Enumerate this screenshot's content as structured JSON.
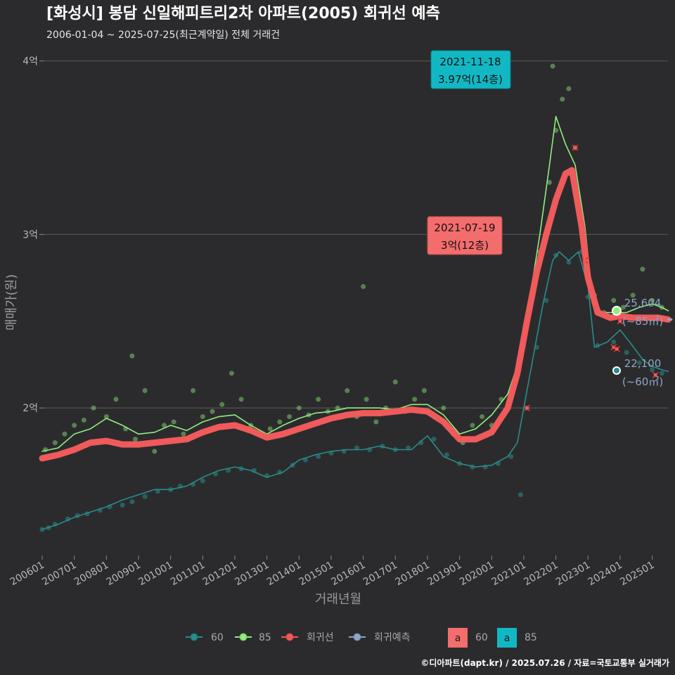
{
  "chart_data": {
    "type": "scatter",
    "title": "[화성시] 봉담 신일해피트리2차 아파트(2005) 회귀선 예측",
    "subtitle": "2006-01-04 ~ 2025-07-25(최근계약일) 전체 거래건",
    "xlabel": "거래년월",
    "ylabel": "매매가(원)",
    "x_range": [
      2006.0,
      2025.6
    ],
    "ylim": [
      1.15,
      4.1
    ],
    "y_unit": "억",
    "y_ticks": [
      {
        "value": 2,
        "label": "2억"
      },
      {
        "value": 3,
        "label": "3억"
      },
      {
        "value": 4,
        "label": "4억"
      }
    ],
    "x_ticks": [
      "200601",
      "200701",
      "200801",
      "200901",
      "201001",
      "201101",
      "201201",
      "201301",
      "201401",
      "201501",
      "201601",
      "201701",
      "201801",
      "201901",
      "202001",
      "202101",
      "202201",
      "202301",
      "202401",
      "202501"
    ],
    "grid": true,
    "legend_position": "bottom",
    "colors": {
      "s60": "#2a8c8c",
      "s85": "#90ee7e",
      "regression": "#f05a5a",
      "prediction": "#8ea6c8",
      "ann60": "#f46d6d",
      "ann85": "#11b8c4",
      "grid": "#555555",
      "bg": "#2b2b2d"
    },
    "series": [
      {
        "name": "60",
        "type": "line",
        "points": [
          [
            2006.0,
            1.3
          ],
          [
            2006.5,
            1.33
          ],
          [
            2007.0,
            1.37
          ],
          [
            2007.5,
            1.4
          ],
          [
            2008.0,
            1.43
          ],
          [
            2008.5,
            1.47
          ],
          [
            2009.0,
            1.5
          ],
          [
            2009.5,
            1.53
          ],
          [
            2010.0,
            1.53
          ],
          [
            2010.5,
            1.55
          ],
          [
            2011.0,
            1.6
          ],
          [
            2011.5,
            1.64
          ],
          [
            2012.0,
            1.66
          ],
          [
            2012.5,
            1.64
          ],
          [
            2013.0,
            1.6
          ],
          [
            2013.5,
            1.63
          ],
          [
            2014.0,
            1.7
          ],
          [
            2014.5,
            1.73
          ],
          [
            2015.0,
            1.75
          ],
          [
            2015.5,
            1.76
          ],
          [
            2016.0,
            1.76
          ],
          [
            2016.5,
            1.78
          ],
          [
            2017.0,
            1.76
          ],
          [
            2017.5,
            1.76
          ],
          [
            2018.0,
            1.84
          ],
          [
            2018.5,
            1.72
          ],
          [
            2019.0,
            1.68
          ],
          [
            2019.5,
            1.66
          ],
          [
            2020.0,
            1.67
          ],
          [
            2020.5,
            1.72
          ],
          [
            2020.8,
            1.8
          ],
          [
            2021.0,
            2.0
          ],
          [
            2021.3,
            2.3
          ],
          [
            2021.6,
            2.6
          ],
          [
            2021.9,
            2.85
          ],
          [
            2022.1,
            2.9
          ],
          [
            2022.4,
            2.85
          ],
          [
            2022.7,
            2.9
          ],
          [
            2023.0,
            2.7
          ],
          [
            2023.2,
            2.35
          ],
          [
            2023.6,
            2.38
          ],
          [
            2024.0,
            2.45
          ],
          [
            2024.3,
            2.38
          ],
          [
            2024.7,
            2.28
          ],
          [
            2025.0,
            2.24
          ],
          [
            2025.3,
            2.22
          ],
          [
            2025.5,
            2.21
          ]
        ]
      },
      {
        "name": "85",
        "type": "line",
        "points": [
          [
            2006.0,
            1.75
          ],
          [
            2006.5,
            1.77
          ],
          [
            2007.0,
            1.85
          ],
          [
            2007.5,
            1.88
          ],
          [
            2008.0,
            1.94
          ],
          [
            2008.5,
            1.9
          ],
          [
            2009.0,
            1.85
          ],
          [
            2009.5,
            1.86
          ],
          [
            2010.0,
            1.9
          ],
          [
            2010.5,
            1.87
          ],
          [
            2011.0,
            1.92
          ],
          [
            2011.5,
            1.95
          ],
          [
            2012.0,
            1.96
          ],
          [
            2012.5,
            1.9
          ],
          [
            2013.0,
            1.85
          ],
          [
            2013.5,
            1.9
          ],
          [
            2014.0,
            1.94
          ],
          [
            2014.5,
            1.97
          ],
          [
            2015.0,
            1.98
          ],
          [
            2015.5,
            2.0
          ],
          [
            2016.0,
            2.0
          ],
          [
            2016.5,
            2.0
          ],
          [
            2017.0,
            1.99
          ],
          [
            2017.5,
            2.02
          ],
          [
            2018.0,
            2.02
          ],
          [
            2018.5,
            1.96
          ],
          [
            2019.0,
            1.85
          ],
          [
            2019.5,
            1.88
          ],
          [
            2020.0,
            1.96
          ],
          [
            2020.5,
            2.08
          ],
          [
            2020.9,
            2.3
          ],
          [
            2021.2,
            2.65
          ],
          [
            2021.5,
            3.0
          ],
          [
            2021.8,
            3.4
          ],
          [
            2022.0,
            3.68
          ],
          [
            2022.3,
            3.52
          ],
          [
            2022.6,
            3.4
          ],
          [
            2022.9,
            3.05
          ],
          [
            2023.1,
            2.7
          ],
          [
            2023.4,
            2.55
          ],
          [
            2023.8,
            2.55
          ],
          [
            2024.2,
            2.55
          ],
          [
            2024.6,
            2.58
          ],
          [
            2025.0,
            2.6
          ],
          [
            2025.3,
            2.58
          ],
          [
            2025.5,
            2.56
          ]
        ]
      },
      {
        "name": "회귀선",
        "type": "line",
        "points": [
          [
            2006.0,
            1.71
          ],
          [
            2006.5,
            1.73
          ],
          [
            2007.0,
            1.76
          ],
          [
            2007.5,
            1.8
          ],
          [
            2008.0,
            1.81
          ],
          [
            2008.5,
            1.79
          ],
          [
            2009.0,
            1.79
          ],
          [
            2009.5,
            1.8
          ],
          [
            2010.0,
            1.81
          ],
          [
            2010.5,
            1.82
          ],
          [
            2011.0,
            1.86
          ],
          [
            2011.5,
            1.89
          ],
          [
            2012.0,
            1.9
          ],
          [
            2012.5,
            1.87
          ],
          [
            2013.0,
            1.83
          ],
          [
            2013.5,
            1.85
          ],
          [
            2014.0,
            1.88
          ],
          [
            2014.5,
            1.91
          ],
          [
            2015.0,
            1.94
          ],
          [
            2015.5,
            1.96
          ],
          [
            2016.0,
            1.97
          ],
          [
            2016.5,
            1.97
          ],
          [
            2017.0,
            1.98
          ],
          [
            2017.5,
            1.99
          ],
          [
            2018.0,
            1.98
          ],
          [
            2018.5,
            1.92
          ],
          [
            2019.0,
            1.82
          ],
          [
            2019.5,
            1.82
          ],
          [
            2020.0,
            1.86
          ],
          [
            2020.5,
            2.0
          ],
          [
            2020.8,
            2.2
          ],
          [
            2021.1,
            2.5
          ],
          [
            2021.4,
            2.78
          ],
          [
            2021.7,
            3.0
          ],
          [
            2022.0,
            3.2
          ],
          [
            2022.3,
            3.35
          ],
          [
            2022.5,
            3.37
          ],
          [
            2022.8,
            3.05
          ],
          [
            2023.0,
            2.75
          ],
          [
            2023.3,
            2.55
          ],
          [
            2023.7,
            2.52
          ],
          [
            2024.0,
            2.53
          ],
          [
            2024.4,
            2.52
          ],
          [
            2024.8,
            2.52
          ],
          [
            2025.2,
            2.52
          ],
          [
            2025.5,
            2.51
          ]
        ]
      },
      {
        "name": "회귀예측",
        "type": "line",
        "points": [
          [
            2025.5,
            2.51
          ],
          [
            2025.6,
            2.51
          ]
        ]
      }
    ],
    "scatter_60": [
      [
        2006.0,
        1.3
      ],
      [
        2006.2,
        1.31
      ],
      [
        2006.4,
        1.33
      ],
      [
        2006.8,
        1.36
      ],
      [
        2007.1,
        1.38
      ],
      [
        2007.4,
        1.39
      ],
      [
        2007.8,
        1.41
      ],
      [
        2008.1,
        1.43
      ],
      [
        2008.5,
        1.44
      ],
      [
        2008.8,
        1.46
      ],
      [
        2009.2,
        1.49
      ],
      [
        2009.6,
        1.52
      ],
      [
        2010.0,
        1.53
      ],
      [
        2010.3,
        1.55
      ],
      [
        2010.7,
        1.56
      ],
      [
        2011.0,
        1.58
      ],
      [
        2011.4,
        1.62
      ],
      [
        2011.8,
        1.64
      ],
      [
        2012.2,
        1.65
      ],
      [
        2012.6,
        1.64
      ],
      [
        2013.0,
        1.61
      ],
      [
        2013.4,
        1.63
      ],
      [
        2013.8,
        1.67
      ],
      [
        2014.2,
        1.7
      ],
      [
        2014.6,
        1.72
      ],
      [
        2015.0,
        1.74
      ],
      [
        2015.4,
        1.75
      ],
      [
        2015.8,
        1.77
      ],
      [
        2016.2,
        1.76
      ],
      [
        2016.6,
        1.78
      ],
      [
        2017.0,
        1.76
      ],
      [
        2017.4,
        1.77
      ],
      [
        2017.8,
        1.8
      ],
      [
        2018.2,
        1.82
      ],
      [
        2018.6,
        1.73
      ],
      [
        2019.0,
        1.68
      ],
      [
        2019.4,
        1.66
      ],
      [
        2019.8,
        1.66
      ],
      [
        2020.2,
        1.68
      ],
      [
        2020.6,
        1.72
      ],
      [
        2020.9,
        1.5
      ],
      [
        2021.1,
        2.0
      ],
      [
        2021.4,
        2.35
      ],
      [
        2021.7,
        2.62
      ],
      [
        2022.0,
        2.88
      ],
      [
        2022.4,
        2.84
      ],
      [
        2022.8,
        2.9
      ],
      [
        2023.0,
        2.64
      ],
      [
        2023.3,
        2.36
      ],
      [
        2023.8,
        2.38
      ],
      [
        2024.2,
        2.32
      ],
      [
        2024.6,
        2.26
      ],
      [
        2025.0,
        2.22
      ],
      [
        2025.3,
        2.2
      ]
    ],
    "scatter_85": [
      [
        2006.1,
        1.76
      ],
      [
        2006.4,
        1.8
      ],
      [
        2006.7,
        1.85
      ],
      [
        2007.0,
        1.9
      ],
      [
        2007.3,
        1.93
      ],
      [
        2007.6,
        2.0
      ],
      [
        2008.0,
        1.95
      ],
      [
        2008.3,
        2.05
      ],
      [
        2008.6,
        1.88
      ],
      [
        2008.9,
        1.82
      ],
      [
        2009.2,
        2.1
      ],
      [
        2009.5,
        1.75
      ],
      [
        2009.8,
        1.9
      ],
      [
        2010.1,
        1.92
      ],
      [
        2010.4,
        1.85
      ],
      [
        2010.7,
        2.1
      ],
      [
        2011.0,
        1.95
      ],
      [
        2011.3,
        1.98
      ],
      [
        2011.6,
        2.02
      ],
      [
        2011.9,
        2.2
      ],
      [
        2012.2,
        2.05
      ],
      [
        2012.5,
        1.9
      ],
      [
        2012.8,
        1.85
      ],
      [
        2013.1,
        1.88
      ],
      [
        2013.4,
        1.92
      ],
      [
        2013.7,
        1.95
      ],
      [
        2014.0,
        2.0
      ],
      [
        2014.3,
        1.96
      ],
      [
        2014.6,
        2.05
      ],
      [
        2014.9,
        1.98
      ],
      [
        2015.2,
        2.0
      ],
      [
        2015.5,
        2.1
      ],
      [
        2015.8,
        1.95
      ],
      [
        2016.1,
        2.05
      ],
      [
        2016.4,
        1.92
      ],
      [
        2016.7,
        2.0
      ],
      [
        2017.0,
        2.15
      ],
      [
        2017.3,
        1.98
      ],
      [
        2017.6,
        2.05
      ],
      [
        2017.9,
        2.1
      ],
      [
        2018.2,
        1.95
      ],
      [
        2018.5,
        2.0
      ],
      [
        2018.8,
        1.85
      ],
      [
        2019.1,
        1.8
      ],
      [
        2019.4,
        1.9
      ],
      [
        2019.7,
        1.95
      ],
      [
        2020.0,
        1.9
      ],
      [
        2020.3,
        2.05
      ],
      [
        2020.6,
        2.1
      ],
      [
        2020.9,
        2.3
      ],
      [
        2021.2,
        2.6
      ],
      [
        2021.5,
        2.9
      ],
      [
        2021.8,
        3.3
      ],
      [
        2022.0,
        3.6
      ],
      [
        2022.2,
        3.78
      ],
      [
        2022.4,
        3.84
      ],
      [
        2022.6,
        3.5
      ],
      [
        2022.9,
        2.95
      ],
      [
        2023.2,
        2.65
      ],
      [
        2023.5,
        2.55
      ],
      [
        2023.8,
        2.62
      ],
      [
        2024.1,
        2.58
      ],
      [
        2024.4,
        2.65
      ],
      [
        2024.7,
        2.8
      ],
      [
        2025.0,
        2.62
      ],
      [
        2025.3,
        2.58
      ],
      [
        2021.9,
        3.97
      ],
      [
        2016.0,
        2.7
      ],
      [
        2008.8,
        2.3
      ]
    ],
    "markers_red": [
      [
        2021.1,
        2.0
      ],
      [
        2022.6,
        3.5
      ],
      [
        2022.9,
        2.85
      ],
      [
        2023.8,
        2.35
      ],
      [
        2023.9,
        2.34
      ],
      [
        2024.0,
        2.5
      ],
      [
        2025.1,
        2.19
      ]
    ],
    "end_labels": [
      {
        "value": "25,604",
        "unit": "(~85㎡)"
      },
      {
        "value": "22,100",
        "unit": "(~60㎡)"
      }
    ],
    "annotations": [
      {
        "date": "2021-11-18",
        "text": "3.97억(14층)",
        "series": "85"
      },
      {
        "date": "2021-07-19",
        "text": "3억(12층)",
        "series": "60"
      }
    ],
    "legend": {
      "items": [
        "60",
        "85",
        "회귀선",
        "회귀예측"
      ],
      "label_keys": [
        "60",
        "85"
      ],
      "label_glyph": "a"
    },
    "footer": "©디아파트(dapt.kr) / 2025.07.26 / 자료=국토교통부 실거래가"
  }
}
